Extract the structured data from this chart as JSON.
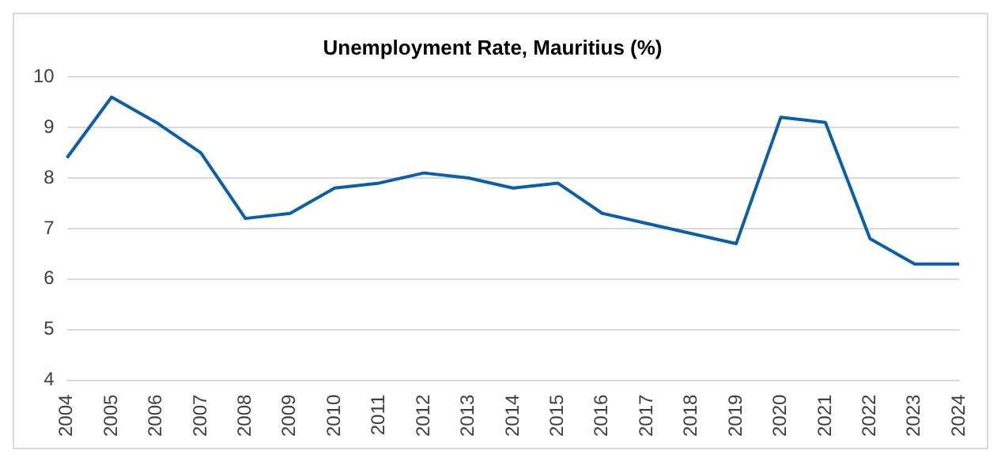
{
  "chart_data": {
    "type": "line",
    "title": "Unemployment Rate, Mauritius (%)",
    "categories": [
      "2004",
      "2005",
      "2006",
      "2007",
      "2008",
      "2009",
      "2010",
      "2011",
      "2012",
      "2013",
      "2014",
      "2015",
      "2016",
      "2017",
      "2018",
      "2019",
      "2020",
      "2021",
      "2022",
      "2023",
      "2024"
    ],
    "series": [
      {
        "color": "#0b5ea8",
        "values": [
          8.4,
          9.6,
          9.1,
          8.5,
          7.2,
          7.3,
          7.8,
          7.9,
          8.1,
          8.0,
          7.8,
          7.9,
          7.3,
          7.1,
          6.9,
          6.7,
          9.2,
          9.1,
          6.8,
          6.3,
          6.3
        ]
      }
    ],
    "ylim": [
      4,
      10
    ],
    "yticks": [
      4,
      5,
      6,
      7,
      8,
      9,
      10
    ],
    "grid": "y",
    "legend": false,
    "marker": "none",
    "line_style": "solid"
  }
}
